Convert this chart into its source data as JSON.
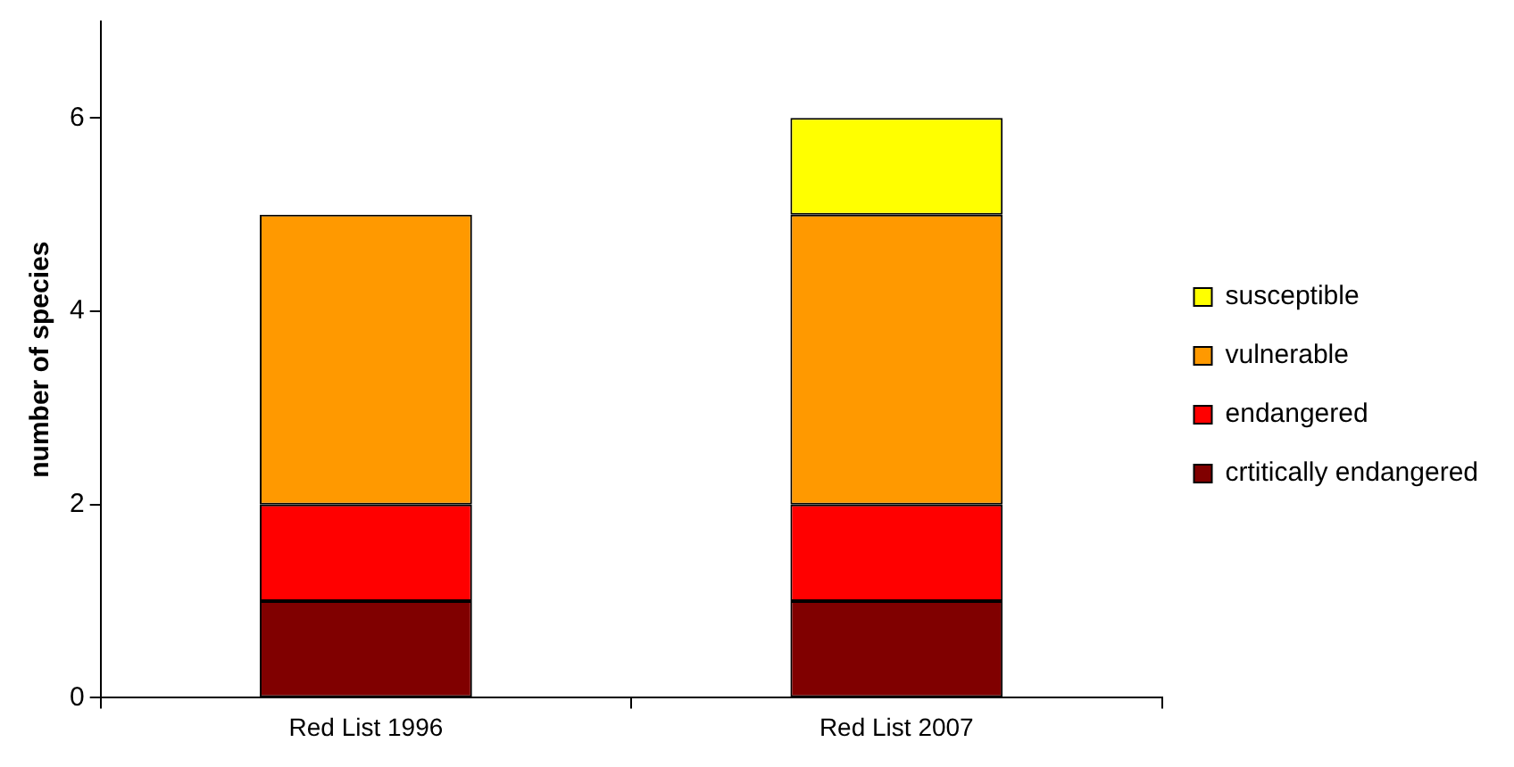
{
  "chart_data": {
    "type": "bar",
    "stacked": true,
    "ylabel": "number of species",
    "categories": [
      "Red List 1996",
      "Red List 2007"
    ],
    "series": [
      {
        "name": "crtitically endangered",
        "color": "#800000",
        "values": [
          1,
          1
        ]
      },
      {
        "name": "endangered",
        "color": "#ff0000",
        "values": [
          1,
          1
        ]
      },
      {
        "name": "vulnerable",
        "color": "#ff9900",
        "values": [
          3,
          3
        ]
      },
      {
        "name": "susceptible",
        "color": "#ffff00",
        "values": [
          0,
          1
        ]
      }
    ],
    "ylim": [
      0,
      7
    ],
    "yticks": [
      0,
      2,
      4,
      6
    ],
    "grid": false,
    "legend": "right"
  }
}
